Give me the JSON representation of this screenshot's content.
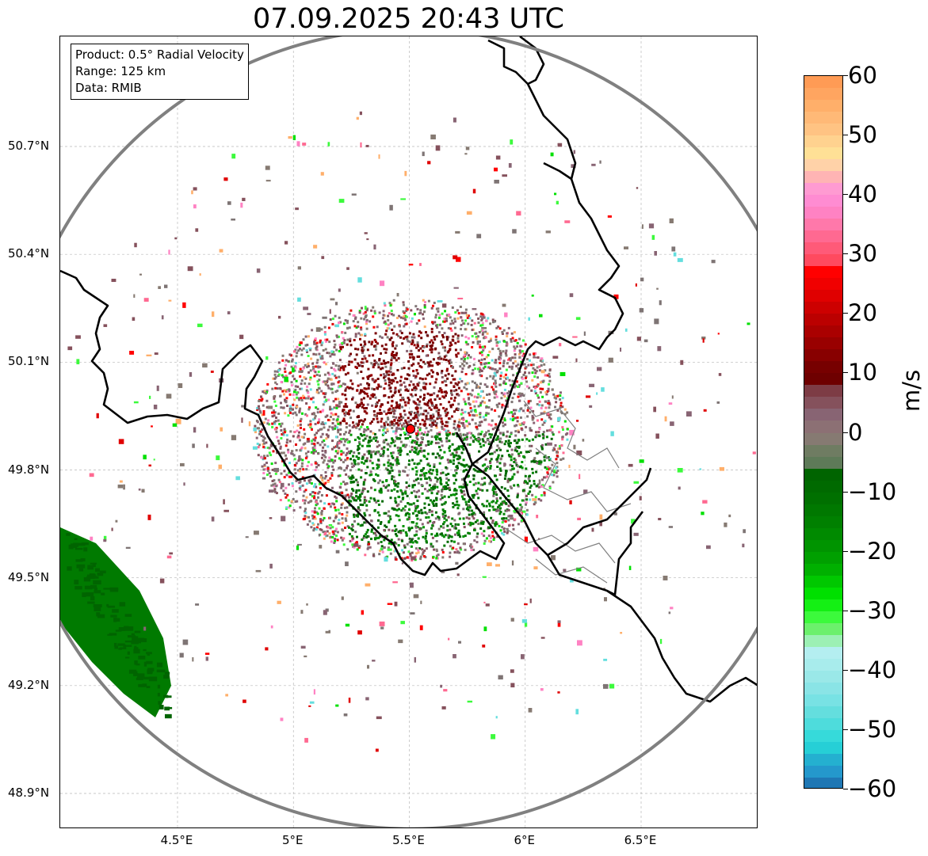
{
  "title": "07.09.2025 20:43 UTC",
  "info_box": {
    "product": "Product: 0.5° Radial Velocity",
    "range": "Range: 125 km",
    "data": "Data: RMIB"
  },
  "map": {
    "lon_ticks": [
      {
        "label": "4.5°E",
        "value": 4.5
      },
      {
        "label": "5°E",
        "value": 5.0
      },
      {
        "label": "5.5°E",
        "value": 5.5
      },
      {
        "label": "6°E",
        "value": 6.0
      },
      {
        "label": "6.5°E",
        "value": 6.5
      }
    ],
    "lat_ticks": [
      {
        "label": "50.7°N",
        "value": 50.7
      },
      {
        "label": "50.4°N",
        "value": 50.4
      },
      {
        "label": "50.1°N",
        "value": 50.1
      },
      {
        "label": "49.8°N",
        "value": 49.8
      },
      {
        "label": "49.5°N",
        "value": 49.5
      },
      {
        "label": "49.2°N",
        "value": 49.2
      },
      {
        "label": "48.9°N",
        "value": 48.9
      }
    ],
    "lon_range": [
      4.0,
      7.0
    ],
    "lat_range": [
      48.8,
      51.0
    ],
    "radar_site": {
      "lon": 5.505,
      "lat": 49.914
    },
    "range_ring_color": "#808080",
    "border_color": "#000000",
    "grid": true,
    "echo_colors": {
      "outbound_strong": "#7a0000",
      "zero": "#7e7474",
      "inbound_green": "#007a00",
      "inbound_dark": "#006400"
    }
  },
  "colorbar": {
    "unit": "m/s",
    "min": -60,
    "max": 60,
    "ticks": [
      {
        "label": "60",
        "value": 60
      },
      {
        "label": "50",
        "value": 50
      },
      {
        "label": "40",
        "value": 40
      },
      {
        "label": "30",
        "value": 30
      },
      {
        "label": "20",
        "value": 20
      },
      {
        "label": "10",
        "value": 10
      },
      {
        "label": "0",
        "value": 0
      },
      {
        "label": "−10",
        "value": -10
      },
      {
        "label": "−20",
        "value": -20
      },
      {
        "label": "−30",
        "value": -30
      },
      {
        "label": "−40",
        "value": -40
      },
      {
        "label": "−50",
        "value": -50
      },
      {
        "label": "−60",
        "value": -60
      }
    ],
    "segments": [
      {
        "from": 58,
        "to": 60,
        "color": "#ff9b55"
      },
      {
        "from": 56,
        "to": 58,
        "color": "#ffa560"
      },
      {
        "from": 54,
        "to": 56,
        "color": "#ffaf6a"
      },
      {
        "from": 52,
        "to": 54,
        "color": "#ffb977"
      },
      {
        "from": 50,
        "to": 52,
        "color": "#ffc383"
      },
      {
        "from": 48,
        "to": 50,
        "color": "#ffd28f"
      },
      {
        "from": 46,
        "to": 48,
        "color": "#ffe096"
      },
      {
        "from": 44,
        "to": 46,
        "color": "#ffd2a8"
      },
      {
        "from": 42,
        "to": 44,
        "color": "#ffb4b4"
      },
      {
        "from": 40,
        "to": 42,
        "color": "#ff9bd2"
      },
      {
        "from": 38,
        "to": 40,
        "color": "#ff8cd2"
      },
      {
        "from": 36,
        "to": 38,
        "color": "#ff82c3"
      },
      {
        "from": 34,
        "to": 36,
        "color": "#ff78aa"
      },
      {
        "from": 32,
        "to": 34,
        "color": "#ff6991"
      },
      {
        "from": 30,
        "to": 32,
        "color": "#ff5a78"
      },
      {
        "from": 28,
        "to": 30,
        "color": "#ff4a5f"
      },
      {
        "from": 26,
        "to": 28,
        "color": "#ff0000"
      },
      {
        "from": 24,
        "to": 26,
        "color": "#f00000"
      },
      {
        "from": 22,
        "to": 24,
        "color": "#e00000"
      },
      {
        "from": 20,
        "to": 22,
        "color": "#cd0000"
      },
      {
        "from": 18,
        "to": 20,
        "color": "#bb0000"
      },
      {
        "from": 16,
        "to": 18,
        "color": "#aa0000"
      },
      {
        "from": 14,
        "to": 16,
        "color": "#990000"
      },
      {
        "from": 12,
        "to": 14,
        "color": "#880000"
      },
      {
        "from": 10,
        "to": 12,
        "color": "#770000"
      },
      {
        "from": 8,
        "to": 10,
        "color": "#6e0000"
      },
      {
        "from": 6,
        "to": 8,
        "color": "#7d3c45"
      },
      {
        "from": 4,
        "to": 6,
        "color": "#85515c"
      },
      {
        "from": 2,
        "to": 4,
        "color": "#886473"
      },
      {
        "from": 0,
        "to": 2,
        "color": "#8c7074"
      },
      {
        "from": -2,
        "to": 0,
        "color": "#867a72"
      },
      {
        "from": -4,
        "to": -2,
        "color": "#6f7c62"
      },
      {
        "from": -6,
        "to": -4,
        "color": "#5e7a58"
      },
      {
        "from": -8,
        "to": -6,
        "color": "#006400"
      },
      {
        "from": -10,
        "to": -8,
        "color": "#006a00"
      },
      {
        "from": -12,
        "to": -10,
        "color": "#007000"
      },
      {
        "from": -14,
        "to": -12,
        "color": "#007800"
      },
      {
        "from": -16,
        "to": -14,
        "color": "#008000"
      },
      {
        "from": -18,
        "to": -16,
        "color": "#008a00"
      },
      {
        "from": -20,
        "to": -18,
        "color": "#009400"
      },
      {
        "from": -22,
        "to": -20,
        "color": "#00a000"
      },
      {
        "from": -24,
        "to": -22,
        "color": "#00b000"
      },
      {
        "from": -26,
        "to": -24,
        "color": "#00c800"
      },
      {
        "from": -28,
        "to": -26,
        "color": "#00e000"
      },
      {
        "from": -30,
        "to": -28,
        "color": "#14f014"
      },
      {
        "from": -32,
        "to": -30,
        "color": "#3cfa3c"
      },
      {
        "from": -34,
        "to": -32,
        "color": "#6cf06c"
      },
      {
        "from": -36,
        "to": -34,
        "color": "#9cf0b4"
      },
      {
        "from": -38,
        "to": -36,
        "color": "#b4eef0"
      },
      {
        "from": -40,
        "to": -38,
        "color": "#a8ecec"
      },
      {
        "from": -42,
        "to": -40,
        "color": "#9ae8e8"
      },
      {
        "from": -44,
        "to": -42,
        "color": "#8ae4e6"
      },
      {
        "from": -46,
        "to": -44,
        "color": "#78e2e4"
      },
      {
        "from": -48,
        "to": -46,
        "color": "#64dede"
      },
      {
        "from": -50,
        "to": -48,
        "color": "#4edcdc"
      },
      {
        "from": -52,
        "to": -50,
        "color": "#36dada"
      },
      {
        "from": -54,
        "to": -52,
        "color": "#26cfd6"
      },
      {
        "from": -56,
        "to": -54,
        "color": "#24b0d0"
      },
      {
        "from": -58,
        "to": -56,
        "color": "#2498cc"
      },
      {
        "from": -60,
        "to": -58,
        "color": "#1f77b4"
      }
    ]
  }
}
